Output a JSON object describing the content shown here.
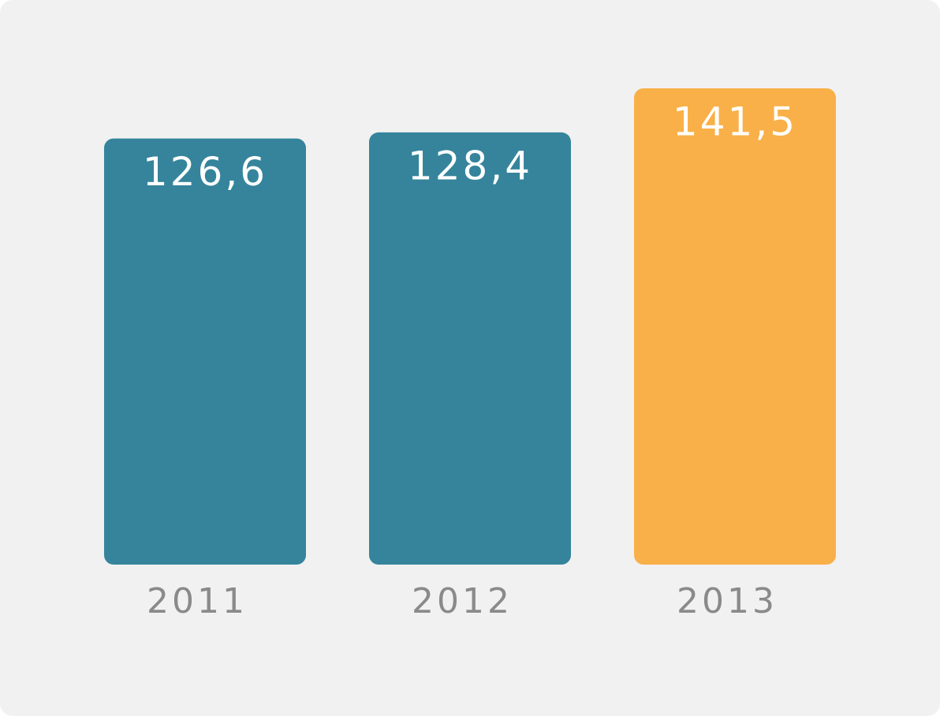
{
  "chart_data": {
    "type": "bar",
    "categories": [
      "2011",
      "2012",
      "2013"
    ],
    "values": [
      126.6,
      128.4,
      141.5
    ],
    "value_labels": [
      "126,6",
      "128,4",
      "141,5"
    ],
    "colors": [
      "#35849c",
      "#35849c",
      "#f9b048"
    ]
  }
}
